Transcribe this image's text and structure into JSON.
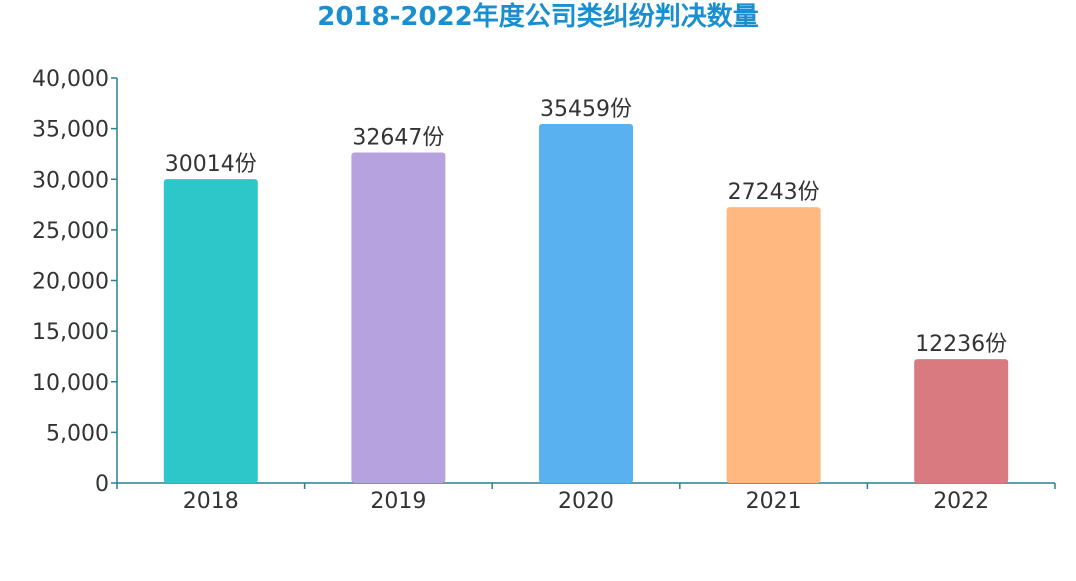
{
  "chart_data": {
    "type": "bar",
    "title": "2018-2022年度公司类纠纷判决数量",
    "categories": [
      "2018",
      "2019",
      "2020",
      "2021",
      "2022"
    ],
    "values": [
      30014,
      32647,
      35459,
      27243,
      12236
    ],
    "value_suffix": "份",
    "bar_colors": [
      "#2ec7c9",
      "#b6a2de",
      "#5ab1ef",
      "#ffb980",
      "#d87a80"
    ],
    "axis_color": "#2a7f94",
    "ylim": [
      0,
      40000
    ],
    "yticks": [
      0,
      5000,
      10000,
      15000,
      20000,
      25000,
      30000,
      35000,
      40000
    ],
    "ytick_labels": [
      "0",
      "5,000",
      "10,000",
      "15,000",
      "20,000",
      "25,000",
      "30,000",
      "35,000",
      "40,000"
    ],
    "xlabel": "",
    "ylabel": "",
    "grid": false,
    "legend": "none"
  }
}
